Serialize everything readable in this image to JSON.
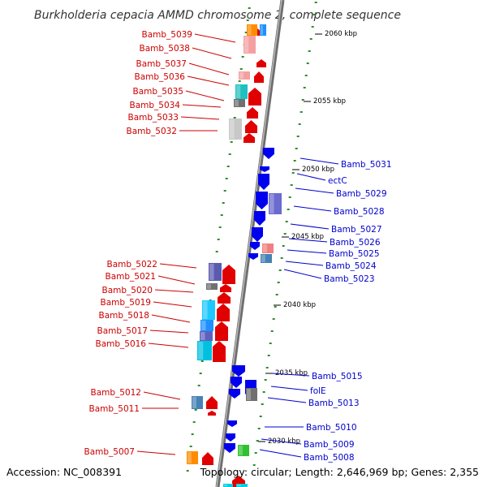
{
  "title": "Burkholderia cepacia AMMD chromosome 2, complete sequence",
  "accession": "Accession: NC_008391",
  "topology": "Topology: circular; Length: 2,646,969 bp; Genes: 2,355",
  "colors": {
    "forward_label": "#cc0000",
    "reverse_label": "#0000cc",
    "backbone": "#8c8c8c",
    "gc_tick": "#2e8b2e"
  },
  "kbp_marks": [
    "2060 kbp",
    "2055 kbp",
    "2050 kbp",
    "2045 kbp",
    "2040 kbp",
    "2035 kbp",
    "2030 kbp"
  ],
  "left_genes": [
    "Bamb_5039",
    "Bamb_5038",
    "Bamb_5037",
    "Bamb_5036",
    "Bamb_5035",
    "Bamb_5034",
    "Bamb_5033",
    "Bamb_5032",
    "Bamb_5022",
    "Bamb_5021",
    "Bamb_5020",
    "Bamb_5019",
    "Bamb_5018",
    "Bamb_5017",
    "Bamb_5016",
    "Bamb_5012",
    "Bamb_5011",
    "Bamb_5007"
  ],
  "right_genes": [
    "Bamb_5031",
    "ectC",
    "Bamb_5029",
    "Bamb_5028",
    "Bamb_5027",
    "Bamb_5026",
    "Bamb_5025",
    "Bamb_5024",
    "Bamb_5023",
    "Bamb_5015",
    "folE",
    "Bamb_5013",
    "Bamb_5010",
    "Bamb_5009",
    "Bamb_5008"
  ]
}
